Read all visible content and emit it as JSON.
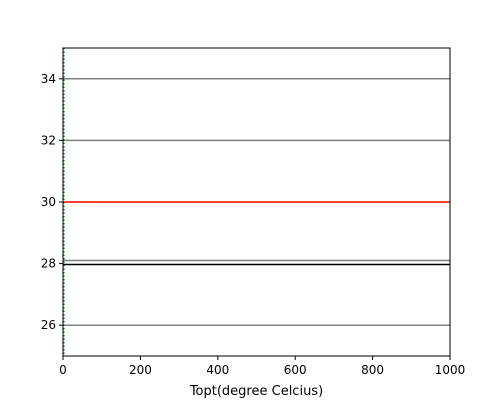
{
  "chart_data": {
    "type": "line",
    "title": "",
    "xlabel": "Topt(degree Celcius)",
    "ylabel": "",
    "xlim": [
      0,
      1000
    ],
    "ylim": [
      25,
      35
    ],
    "x_ticks": [
      0,
      200,
      400,
      600,
      800,
      1000
    ],
    "y_ticks": [
      26,
      28,
      30,
      32,
      34
    ],
    "grid": false,
    "legend": "none",
    "series": [
      {
        "x": [
          0,
          1000
        ],
        "values": [
          34.0,
          34.0
        ],
        "color": "#808080"
      },
      {
        "x": [
          0,
          1000
        ],
        "values": [
          32.0,
          32.0
        ],
        "color": "#808080"
      },
      {
        "x": [
          0,
          1000
        ],
        "values": [
          30.0,
          30.0
        ],
        "color": "#ff0000"
      },
      {
        "x": [
          0,
          1000
        ],
        "values": [
          28.1,
          28.1
        ],
        "color": "#808080"
      },
      {
        "x": [
          0,
          1000
        ],
        "values": [
          27.97,
          27.97
        ],
        "color": "#000000"
      },
      {
        "x": [
          0,
          1000
        ],
        "values": [
          26.0,
          26.0
        ],
        "color": "#808080"
      }
    ],
    "vertical_marker": {
      "x": 0,
      "color": "#008000",
      "style": "dotted"
    }
  }
}
